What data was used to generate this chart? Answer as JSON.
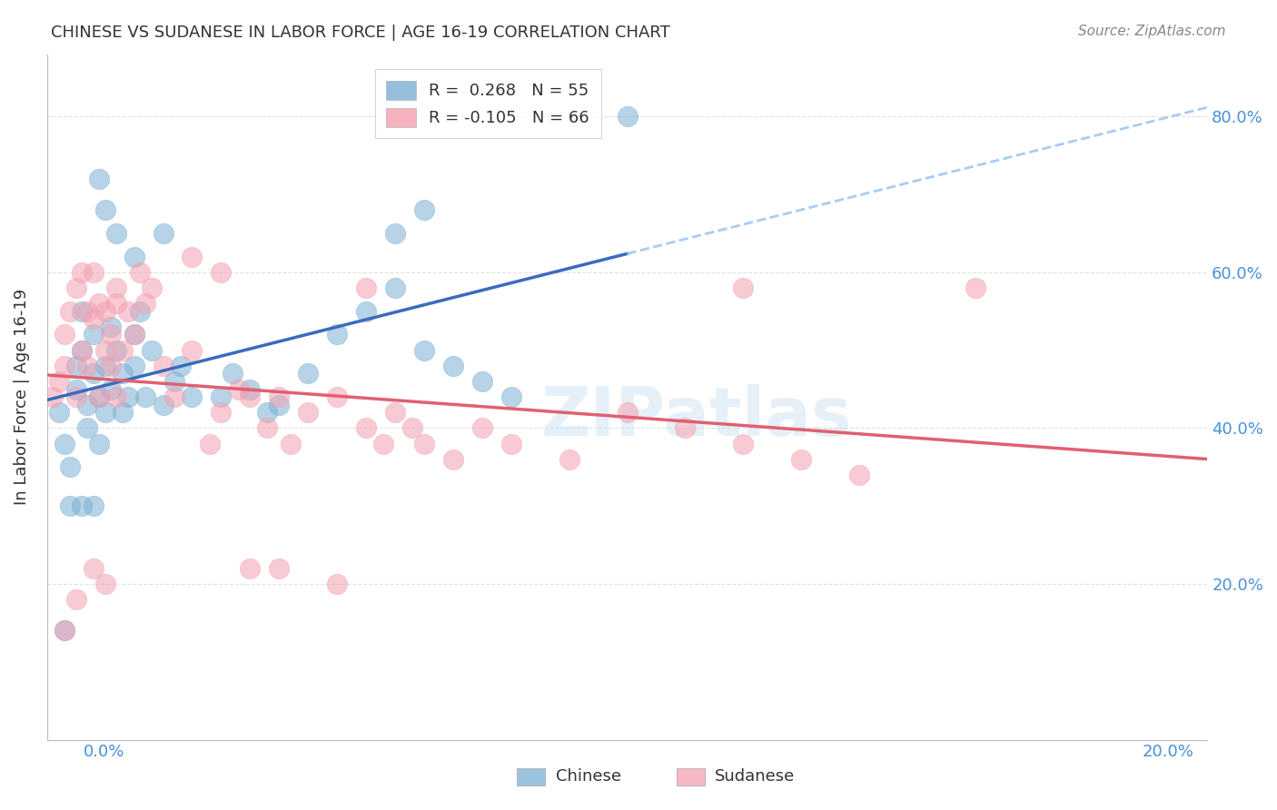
{
  "title": "CHINESE VS SUDANESE IN LABOR FORCE | AGE 16-19 CORRELATION CHART",
  "source": "Source: ZipAtlas.com",
  "ylabel": "In Labor Force | Age 16-19",
  "xmin": 0.0,
  "xmax": 0.2,
  "ymin": 0.0,
  "ymax": 0.88,
  "chinese_R": 0.268,
  "chinese_N": 55,
  "sudanese_R": -0.105,
  "sudanese_N": 66,
  "chinese_color": "#7bafd4",
  "sudanese_color": "#f4a0b0",
  "chinese_line_color": "#3a6bbf",
  "sudanese_line_color": "#e06070",
  "chinese_dash_color": "#aaccee",
  "background_color": "#ffffff",
  "grid_color": "#dddddd",
  "right_axis_color": "#4a90d9",
  "chinese_x": [
    0.002,
    0.003,
    0.004,
    0.005,
    0.005,
    0.006,
    0.006,
    0.007,
    0.007,
    0.008,
    0.008,
    0.009,
    0.009,
    0.01,
    0.01,
    0.011,
    0.011,
    0.012,
    0.013,
    0.013,
    0.014,
    0.015,
    0.015,
    0.016,
    0.017,
    0.018,
    0.02,
    0.022,
    0.023,
    0.025,
    0.03,
    0.032,
    0.035,
    0.038,
    0.04,
    0.045,
    0.05,
    0.055,
    0.06,
    0.065,
    0.07,
    0.075,
    0.08,
    0.003,
    0.004,
    0.006,
    0.008,
    0.009,
    0.01,
    0.012,
    0.015,
    0.02,
    0.06,
    0.065,
    0.1
  ],
  "chinese_y": [
    0.42,
    0.38,
    0.35,
    0.45,
    0.48,
    0.5,
    0.55,
    0.4,
    0.43,
    0.47,
    0.52,
    0.38,
    0.44,
    0.42,
    0.48,
    0.53,
    0.45,
    0.5,
    0.42,
    0.47,
    0.44,
    0.52,
    0.48,
    0.55,
    0.44,
    0.5,
    0.43,
    0.46,
    0.48,
    0.44,
    0.44,
    0.47,
    0.45,
    0.42,
    0.43,
    0.47,
    0.52,
    0.55,
    0.58,
    0.5,
    0.48,
    0.46,
    0.44,
    0.14,
    0.3,
    0.3,
    0.3,
    0.72,
    0.68,
    0.65,
    0.62,
    0.65,
    0.65,
    0.68,
    0.8
  ],
  "sudanese_x": [
    0.001,
    0.002,
    0.003,
    0.003,
    0.004,
    0.005,
    0.005,
    0.006,
    0.006,
    0.007,
    0.007,
    0.008,
    0.008,
    0.009,
    0.009,
    0.01,
    0.01,
    0.011,
    0.011,
    0.012,
    0.012,
    0.013,
    0.014,
    0.015,
    0.016,
    0.017,
    0.018,
    0.02,
    0.022,
    0.025,
    0.028,
    0.03,
    0.033,
    0.035,
    0.038,
    0.04,
    0.042,
    0.045,
    0.05,
    0.055,
    0.058,
    0.06,
    0.063,
    0.065,
    0.07,
    0.075,
    0.08,
    0.09,
    0.1,
    0.11,
    0.12,
    0.13,
    0.14,
    0.003,
    0.005,
    0.008,
    0.01,
    0.012,
    0.025,
    0.03,
    0.035,
    0.04,
    0.05,
    0.055,
    0.12,
    0.16
  ],
  "sudanese_y": [
    0.44,
    0.46,
    0.48,
    0.52,
    0.55,
    0.58,
    0.44,
    0.6,
    0.5,
    0.55,
    0.48,
    0.54,
    0.6,
    0.56,
    0.44,
    0.5,
    0.55,
    0.48,
    0.52,
    0.56,
    0.44,
    0.5,
    0.55,
    0.52,
    0.6,
    0.56,
    0.58,
    0.48,
    0.44,
    0.5,
    0.38,
    0.42,
    0.45,
    0.44,
    0.4,
    0.44,
    0.38,
    0.42,
    0.44,
    0.4,
    0.38,
    0.42,
    0.4,
    0.38,
    0.36,
    0.4,
    0.38,
    0.36,
    0.42,
    0.4,
    0.38,
    0.36,
    0.34,
    0.14,
    0.18,
    0.22,
    0.2,
    0.58,
    0.62,
    0.6,
    0.22,
    0.22,
    0.2,
    0.58,
    0.58,
    0.58
  ]
}
